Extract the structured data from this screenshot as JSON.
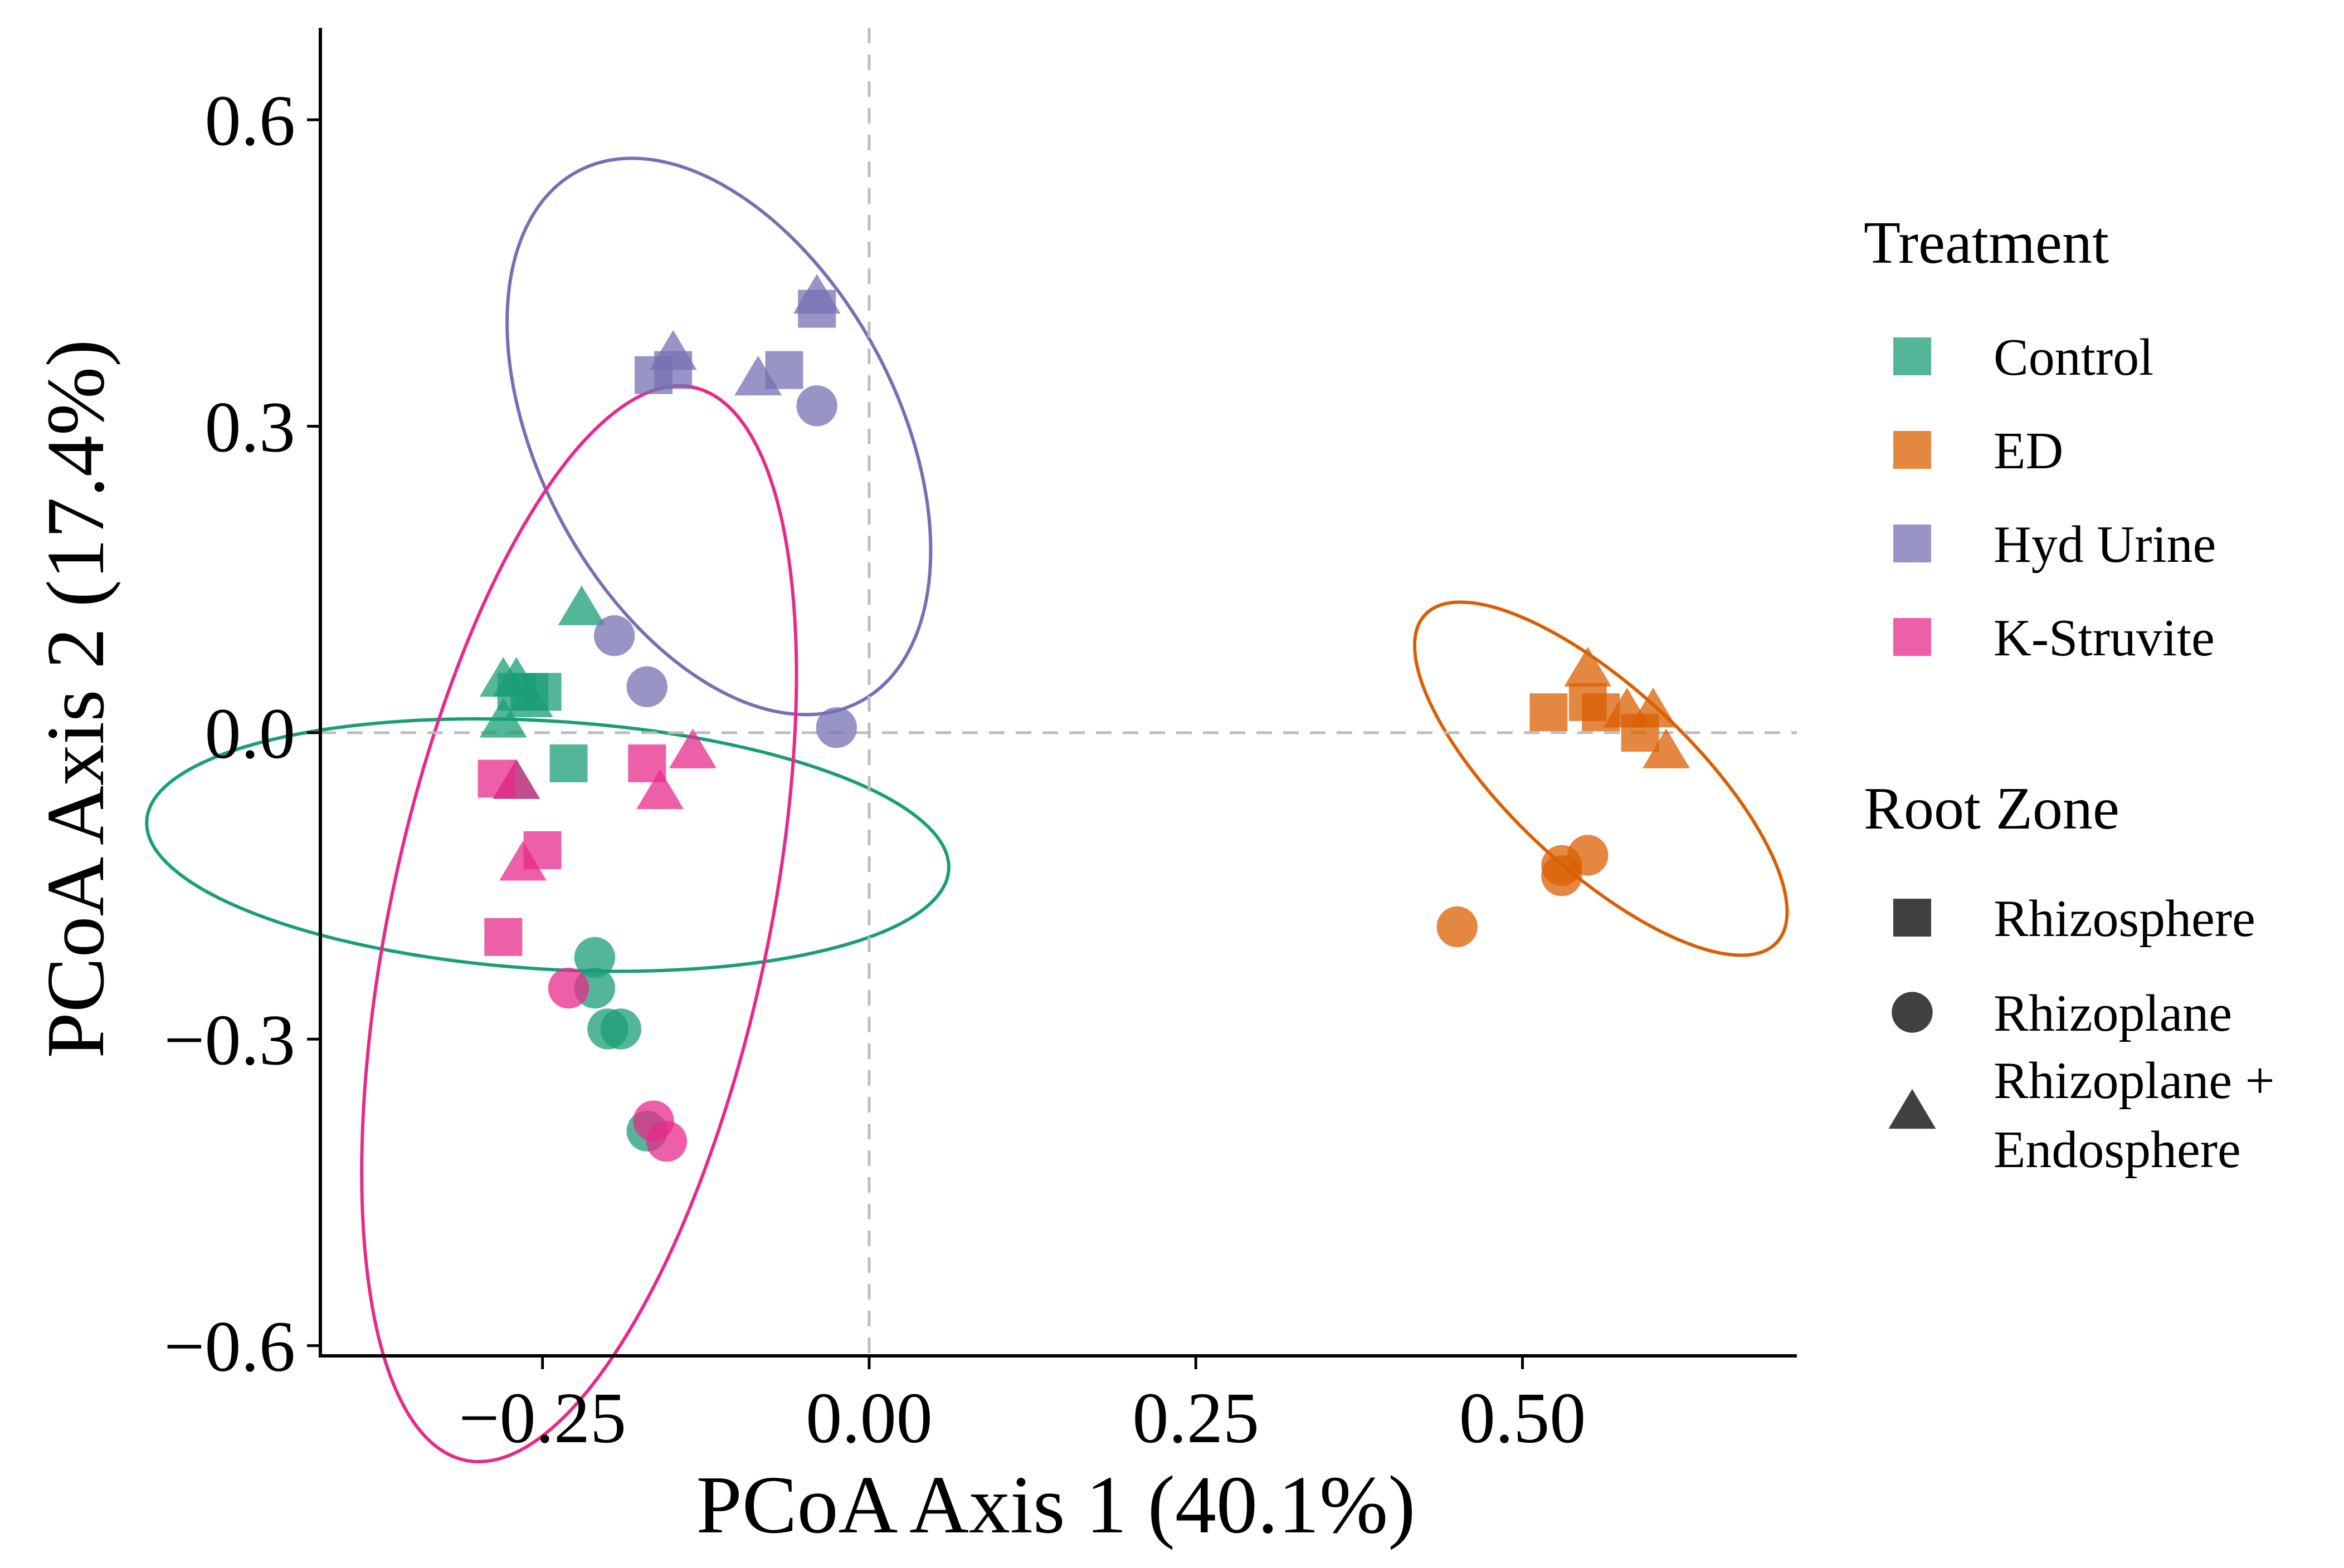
{
  "chart_data": {
    "type": "scatter",
    "xlabel": "PCoA Axis 1 (40.1%)",
    "ylabel": "PCoA Axis 2 (17.4%)",
    "xlim": [
      -0.42,
      0.71
    ],
    "ylim": [
      -0.61,
      0.69
    ],
    "x_ticks": [
      -0.25,
      0.0,
      0.25,
      0.5
    ],
    "x_tick_labels": [
      "−0.25",
      "0.00",
      "0.25",
      "0.50"
    ],
    "y_ticks": [
      -0.6,
      -0.3,
      0.0,
      0.3,
      0.6
    ],
    "y_tick_labels": [
      "−0.6",
      "−0.3",
      "0.0",
      "0.3",
      "0.6"
    ],
    "reference_lines": {
      "x": 0.0,
      "y": 0.0
    },
    "grid": false,
    "legend_treatment": {
      "title": "Treatment",
      "entries": [
        {
          "label": "Control",
          "color": "#1b9e77"
        },
        {
          "label": "ED",
          "color": "#d95f02"
        },
        {
          "label": "Hyd Urine",
          "color": "#7570b3"
        },
        {
          "label": "K-Struvite",
          "color": "#e7298a"
        }
      ]
    },
    "legend_root_zone": {
      "title": "Root Zone",
      "entries": [
        {
          "label": "Rhizosphere",
          "shape": "square"
        },
        {
          "label": "Rhizoplane",
          "shape": "circle"
        },
        {
          "label": "Rhizoplane +",
          "label2": "Endosphere",
          "shape": "triangle"
        }
      ]
    },
    "legend_position": "right",
    "series": [
      {
        "name": "Control",
        "color": "#1b9e77",
        "ellipse": {
          "cx": -0.246,
          "cy": -0.11,
          "rx": 0.095,
          "ry": 0.393,
          "angle_deg": 86.5
        },
        "points": [
          {
            "x": -0.27,
            "y": 0.04,
            "shape": "square"
          },
          {
            "x": -0.26,
            "y": 0.04,
            "shape": "square"
          },
          {
            "x": -0.25,
            "y": 0.04,
            "shape": "square"
          },
          {
            "x": -0.23,
            "y": -0.03,
            "shape": "square"
          },
          {
            "x": -0.22,
            "y": 0.12,
            "shape": "triangle"
          },
          {
            "x": -0.27,
            "y": 0.05,
            "shape": "triangle"
          },
          {
            "x": -0.28,
            "y": 0.05,
            "shape": "triangle"
          },
          {
            "x": -0.26,
            "y": 0.03,
            "shape": "triangle"
          },
          {
            "x": -0.28,
            "y": 0.01,
            "shape": "triangle"
          },
          {
            "x": -0.27,
            "y": -0.05,
            "shape": "triangle"
          },
          {
            "x": -0.21,
            "y": -0.22,
            "shape": "circle"
          },
          {
            "x": -0.21,
            "y": -0.25,
            "shape": "circle"
          },
          {
            "x": -0.2,
            "y": -0.29,
            "shape": "circle"
          },
          {
            "x": -0.19,
            "y": -0.29,
            "shape": "circle"
          },
          {
            "x": -0.17,
            "y": -0.39,
            "shape": "circle"
          }
        ]
      },
      {
        "name": "ED",
        "color": "#d95f02",
        "ellipse": {
          "cx": 0.56,
          "cy": -0.045,
          "rx": 0.184,
          "ry": 0.088,
          "angle_deg": -43
        },
        "points": [
          {
            "x": 0.52,
            "y": 0.02,
            "shape": "square"
          },
          {
            "x": 0.55,
            "y": 0.03,
            "shape": "square"
          },
          {
            "x": 0.56,
            "y": 0.02,
            "shape": "square"
          },
          {
            "x": 0.59,
            "y": 0.0,
            "shape": "square"
          },
          {
            "x": 0.55,
            "y": 0.06,
            "shape": "triangle"
          },
          {
            "x": 0.58,
            "y": 0.02,
            "shape": "triangle"
          },
          {
            "x": 0.6,
            "y": 0.02,
            "shape": "triangle"
          },
          {
            "x": 0.61,
            "y": -0.02,
            "shape": "triangle"
          },
          {
            "x": 0.53,
            "y": -0.13,
            "shape": "circle"
          },
          {
            "x": 0.55,
            "y": -0.12,
            "shape": "circle"
          },
          {
            "x": 0.53,
            "y": -0.14,
            "shape": "circle"
          },
          {
            "x": 0.45,
            "y": -0.19,
            "shape": "circle"
          }
        ]
      },
      {
        "name": "Hyd Urine",
        "color": "#7570b3",
        "ellipse": {
          "cx": -0.115,
          "cy": 0.29,
          "rx": 0.23,
          "ry": 0.175,
          "angle_deg": -62
        },
        "points": [
          {
            "x": -0.165,
            "y": 0.35,
            "shape": "square"
          },
          {
            "x": -0.15,
            "y": 0.355,
            "shape": "square"
          },
          {
            "x": -0.065,
            "y": 0.355,
            "shape": "square"
          },
          {
            "x": -0.04,
            "y": 0.415,
            "shape": "square"
          },
          {
            "x": -0.15,
            "y": 0.37,
            "shape": "triangle"
          },
          {
            "x": -0.085,
            "y": 0.345,
            "shape": "triangle"
          },
          {
            "x": -0.04,
            "y": 0.425,
            "shape": "triangle"
          },
          {
            "x": -0.04,
            "y": 0.32,
            "shape": "circle"
          },
          {
            "x": -0.195,
            "y": 0.095,
            "shape": "circle"
          },
          {
            "x": -0.17,
            "y": 0.045,
            "shape": "circle"
          },
          {
            "x": -0.025,
            "y": 0.005,
            "shape": "circle"
          }
        ]
      },
      {
        "name": "K-Struvite",
        "color": "#e7298a",
        "ellipse": {
          "cx": -0.222,
          "cy": -0.187,
          "rx": 0.42,
          "ry": 0.185,
          "angle_deg": 78
        },
        "points": [
          {
            "x": -0.285,
            "y": -0.045,
            "shape": "square"
          },
          {
            "x": -0.17,
            "y": -0.03,
            "shape": "square"
          },
          {
            "x": -0.25,
            "y": -0.115,
            "shape": "square"
          },
          {
            "x": -0.28,
            "y": -0.2,
            "shape": "square"
          },
          {
            "x": -0.27,
            "y": -0.05,
            "shape": "triangle"
          },
          {
            "x": -0.135,
            "y": -0.02,
            "shape": "triangle"
          },
          {
            "x": -0.16,
            "y": -0.06,
            "shape": "triangle"
          },
          {
            "x": -0.265,
            "y": -0.13,
            "shape": "triangle"
          },
          {
            "x": -0.23,
            "y": -0.25,
            "shape": "circle"
          },
          {
            "x": -0.165,
            "y": -0.38,
            "shape": "circle"
          },
          {
            "x": -0.155,
            "y": -0.4,
            "shape": "circle"
          }
        ]
      }
    ]
  }
}
